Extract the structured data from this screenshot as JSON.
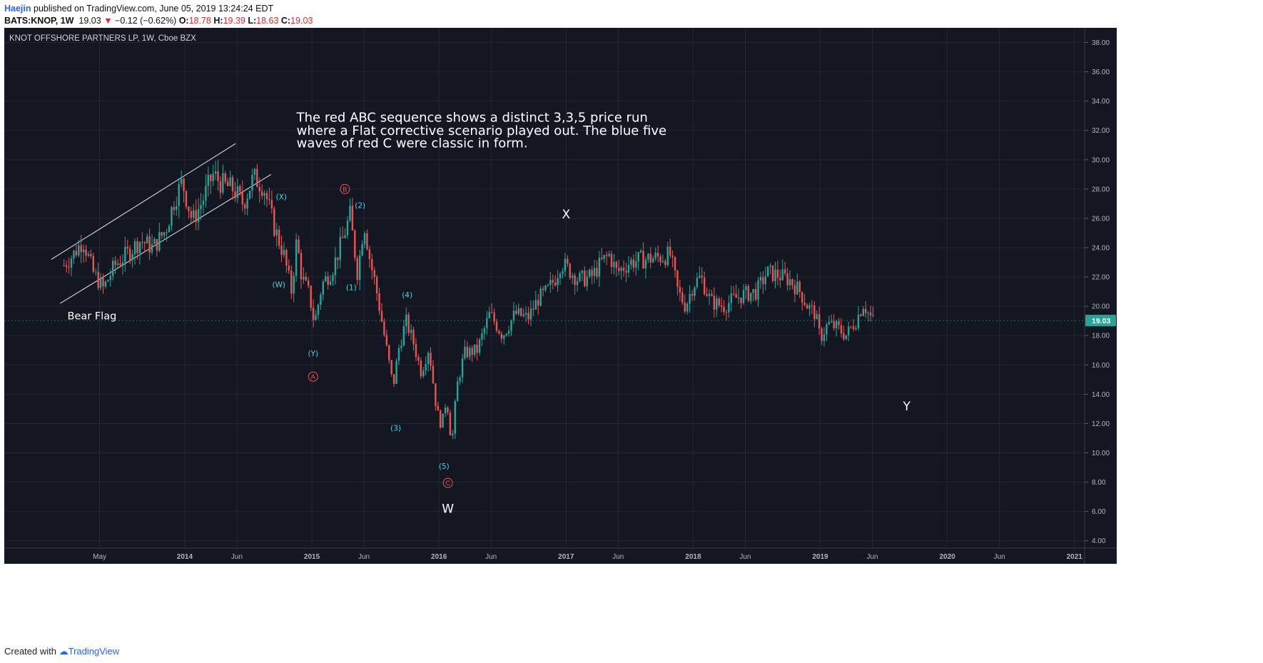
{
  "header": {
    "author": "Haejin",
    "published_text": "published on TradingView.com, June 05, 2019 13:24:24 EDT",
    "symbol": "BATS:KNOP, 1W",
    "last": "19.03",
    "change": "−0.12 (−0.62%)",
    "open_label": "O:",
    "open": "18.78",
    "high_label": "H:",
    "high": "19.39",
    "low_label": "L:",
    "low": "18.63",
    "close_label": "C:",
    "close": "19.03"
  },
  "footer": {
    "created_with": "Created with",
    "brand": "TradingView"
  },
  "colors": {
    "background": "#131722",
    "up": "#26a69a",
    "down": "#ef5350",
    "wave_blue": "#4dd0e1",
    "wave_red": "#ef5350",
    "price_badge": "#26a69a"
  },
  "chart_data": {
    "type": "candlestick",
    "title": "KNOT OFFSHORE PARTNERS LP, 1W, Cboe BZX",
    "ylim": [
      3.5,
      39
    ],
    "y_ticks": [
      "4.00",
      "6.00",
      "8.00",
      "10.00",
      "12.00",
      "14.00",
      "16.00",
      "18.00",
      "20.00",
      "22.00",
      "24.00",
      "26.00",
      "28.00",
      "30.00",
      "32.00",
      "34.00",
      "36.00",
      "38.00"
    ],
    "x_ticks": [
      {
        "label": "May",
        "t": 2013.33
      },
      {
        "label": "2014",
        "t": 2014.0
      },
      {
        "label": "Jun",
        "t": 2014.41
      },
      {
        "label": "2015",
        "t": 2015.0
      },
      {
        "label": "Jun",
        "t": 2015.41
      },
      {
        "label": "2016",
        "t": 2016.0
      },
      {
        "label": "Jun",
        "t": 2016.41
      },
      {
        "label": "2017",
        "t": 2017.0
      },
      {
        "label": "Jun",
        "t": 2017.41
      },
      {
        "label": "2018",
        "t": 2018.0
      },
      {
        "label": "Jun",
        "t": 2018.41
      },
      {
        "label": "2019",
        "t": 2019.0
      },
      {
        "label": "Jun",
        "t": 2019.41
      },
      {
        "label": "2020",
        "t": 2020.0
      },
      {
        "label": "Jun",
        "t": 2020.41
      },
      {
        "label": "2021",
        "t": 2021.0
      }
    ],
    "xlim": [
      2012.58,
      2021.08
    ],
    "last_price": "19.03",
    "price_path": [
      [
        2013.05,
        22.8
      ],
      [
        2013.12,
        23.5
      ],
      [
        2013.2,
        24.5
      ],
      [
        2013.28,
        22.3
      ],
      [
        2013.36,
        21.2
      ],
      [
        2013.45,
        22.8
      ],
      [
        2013.55,
        23.6
      ],
      [
        2013.65,
        24.5
      ],
      [
        2013.75,
        24.0
      ],
      [
        2013.85,
        25.2
      ],
      [
        2013.92,
        27.3
      ],
      [
        2013.98,
        28.5
      ],
      [
        2014.06,
        25.8
      ],
      [
        2014.14,
        27.2
      ],
      [
        2014.22,
        29.0
      ],
      [
        2014.3,
        28.3
      ],
      [
        2014.38,
        28.0
      ],
      [
        2014.46,
        27.0
      ],
      [
        2014.54,
        28.8
      ],
      [
        2014.62,
        28.2
      ],
      [
        2014.7,
        25.5
      ],
      [
        2014.78,
        23.5
      ],
      [
        2014.84,
        21.0
      ],
      [
        2014.88,
        24.5
      ],
      [
        2014.92,
        22.0
      ],
      [
        2014.98,
        20.8
      ],
      [
        2015.02,
        18.8
      ],
      [
        2015.08,
        21.5
      ],
      [
        2015.16,
        22.5
      ],
      [
        2015.24,
        24.5
      ],
      [
        2015.3,
        26.2
      ],
      [
        2015.36,
        22.2
      ],
      [
        2015.41,
        25.8
      ],
      [
        2015.46,
        23.0
      ],
      [
        2015.5,
        21.5
      ],
      [
        2015.55,
        19.0
      ],
      [
        2015.6,
        16.5
      ],
      [
        2015.64,
        14.5
      ],
      [
        2015.68,
        17.0
      ],
      [
        2015.74,
        19.0
      ],
      [
        2015.8,
        17.5
      ],
      [
        2015.86,
        15.5
      ],
      [
        2015.92,
        17.2
      ],
      [
        2015.98,
        13.0
      ],
      [
        2016.02,
        11.8
      ],
      [
        2016.06,
        13.8
      ],
      [
        2016.1,
        10.5
      ],
      [
        2016.14,
        14.5
      ],
      [
        2016.2,
        16.8
      ],
      [
        2016.3,
        17.0
      ],
      [
        2016.4,
        19.5
      ],
      [
        2016.5,
        18.0
      ],
      [
        2016.6,
        19.5
      ],
      [
        2016.7,
        19.2
      ],
      [
        2016.78,
        20.5
      ],
      [
        2016.85,
        21.0
      ],
      [
        2016.92,
        22.0
      ],
      [
        2016.96,
        23.0
      ],
      [
        2017.02,
        22.5
      ],
      [
        2017.1,
        21.8
      ],
      [
        2017.2,
        22.0
      ],
      [
        2017.28,
        23.0
      ],
      [
        2017.34,
        23.5
      ],
      [
        2017.4,
        22.3
      ],
      [
        2017.5,
        23.0
      ],
      [
        2017.6,
        23.2
      ],
      [
        2017.7,
        23.3
      ],
      [
        2017.82,
        23.5
      ],
      [
        2017.88,
        21.0
      ],
      [
        2017.94,
        20.0
      ],
      [
        2018.0,
        21.5
      ],
      [
        2018.06,
        22.0
      ],
      [
        2018.14,
        20.3
      ],
      [
        2018.24,
        20.0
      ],
      [
        2018.32,
        20.5
      ],
      [
        2018.4,
        20.8
      ],
      [
        2018.5,
        21.0
      ],
      [
        2018.58,
        22.3
      ],
      [
        2018.68,
        22.1
      ],
      [
        2018.76,
        21.8
      ],
      [
        2018.84,
        21.0
      ],
      [
        2018.9,
        20.0
      ],
      [
        2018.96,
        19.5
      ],
      [
        2019.0,
        17.8
      ],
      [
        2019.06,
        18.8
      ],
      [
        2019.14,
        18.5
      ],
      [
        2019.2,
        18.0
      ],
      [
        2019.28,
        19.0
      ],
      [
        2019.34,
        20.2
      ],
      [
        2019.38,
        19.5
      ],
      [
        2019.42,
        19.0
      ]
    ],
    "annotations": [
      {
        "text": "The red ABC sequence shows a distinct 3,3,5 price run",
        "t": 2014.88,
        "y": 32.6,
        "kind": "note"
      },
      {
        "text": "where a Flat corrective scenario played out. The blue five",
        "t": 2014.88,
        "y": 31.7,
        "kind": "note"
      },
      {
        "text": "waves of red C were classic in form.",
        "t": 2014.88,
        "y": 30.85,
        "kind": "note"
      },
      {
        "text": "Bear Flag",
        "t": 2013.27,
        "y": 19.1,
        "kind": "label"
      },
      {
        "text": "X",
        "t": 2017.0,
        "y": 26.0,
        "kind": "big"
      },
      {
        "text": "W",
        "t": 2016.07,
        "y": 5.9,
        "kind": "big"
      },
      {
        "text": "Y",
        "t": 2019.68,
        "y": 12.9,
        "kind": "big"
      },
      {
        "text": "(X)",
        "t": 2014.76,
        "y": 27.3,
        "kind": "blue"
      },
      {
        "text": "(W)",
        "t": 2014.74,
        "y": 21.3,
        "kind": "blue"
      },
      {
        "text": "(Y)",
        "t": 2015.01,
        "y": 16.6,
        "kind": "blue"
      },
      {
        "text": "(2)",
        "t": 2015.38,
        "y": 26.7,
        "kind": "blue"
      },
      {
        "text": "(1)",
        "t": 2015.31,
        "y": 21.1,
        "kind": "blue"
      },
      {
        "text": "(4)",
        "t": 2015.75,
        "y": 20.6,
        "kind": "blue"
      },
      {
        "text": "(3)",
        "t": 2015.66,
        "y": 11.5,
        "kind": "blue"
      },
      {
        "text": "(5)",
        "t": 2016.04,
        "y": 8.9,
        "kind": "blue"
      }
    ],
    "circle_labels": [
      {
        "text": "B",
        "t": 2015.26,
        "y": 28.0
      },
      {
        "text": "A",
        "t": 2015.01,
        "y": 15.2
      },
      {
        "text": "C",
        "t": 2016.07,
        "y": 7.95
      }
    ],
    "channel_lines": [
      {
        "t1": 2012.95,
        "y1": 23.2,
        "t2": 2014.4,
        "y2": 31.1
      },
      {
        "t1": 2013.02,
        "y1": 20.2,
        "t2": 2014.68,
        "y2": 29.0
      }
    ]
  }
}
